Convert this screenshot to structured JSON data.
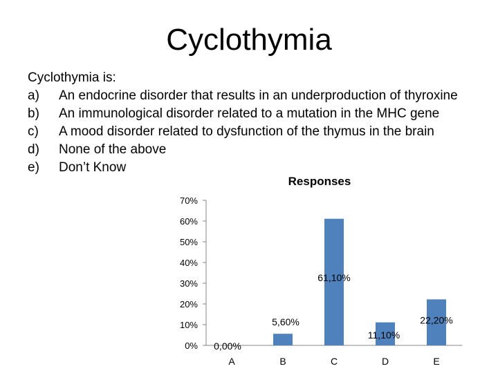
{
  "slide": {
    "title": "Cyclothymia"
  },
  "question": {
    "stem": "Cyclothymia is:",
    "options": [
      {
        "letter": "a)",
        "text": "An endocrine disorder that results in an underproduction of thyroxine"
      },
      {
        "letter": "b)",
        "text": "An immunological disorder related to a mutation in the MHC gene"
      },
      {
        "letter": "c)",
        "text": "A mood disorder related to dysfunction of the thymus in the brain"
      },
      {
        "letter": "d)",
        "text": "None of the above"
      },
      {
        "letter": "e)",
        "text": "Don’t Know"
      }
    ]
  },
  "chart_data": {
    "type": "bar",
    "title": "Responses",
    "categories": [
      "A",
      "B",
      "C",
      "D",
      "E"
    ],
    "values": [
      0.0,
      5.6,
      61.1,
      11.1,
      22.2
    ],
    "value_labels": [
      "0,00%",
      "5,60%",
      "61,10%",
      "11,10%",
      "22,20%"
    ],
    "y_ticks": [
      "0%",
      "10%",
      "20%",
      "30%",
      "40%",
      "50%",
      "60%",
      "70%"
    ],
    "ylim": [
      0,
      70
    ],
    "grid": false,
    "legend": false,
    "bar_color": "#4f81bd"
  }
}
